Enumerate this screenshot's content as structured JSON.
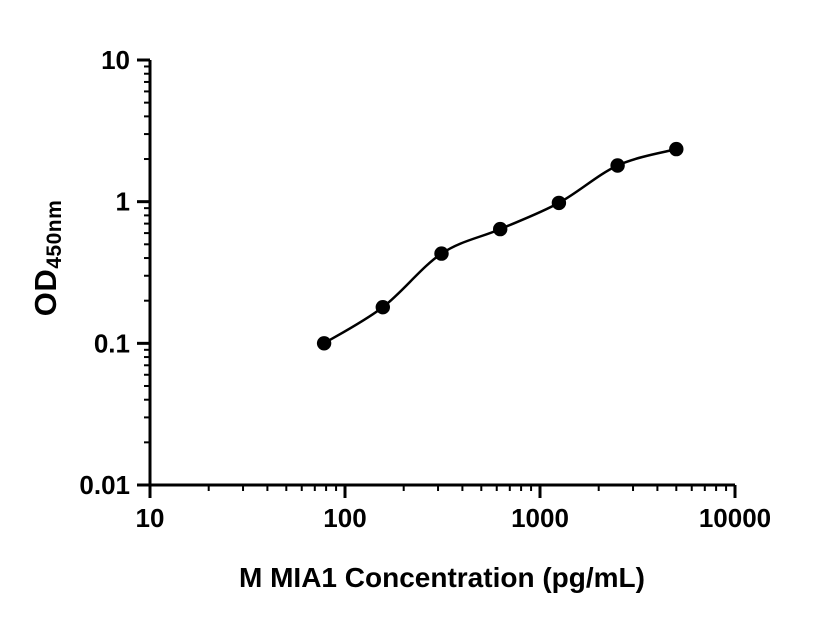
{
  "chart_data": {
    "type": "scatter",
    "title": "",
    "xlabel": "M MIA1 Concentration (pg/mL)",
    "ylabel": "OD",
    "ylabel_subscript": "450nm",
    "x_scale": "log10",
    "y_scale": "log10",
    "xlim": [
      10,
      10000
    ],
    "ylim": [
      0.01,
      10
    ],
    "x_ticks": [
      10,
      100,
      1000,
      10000
    ],
    "x_tick_labels": [
      "10",
      "100",
      "1000",
      "10000"
    ],
    "y_ticks": [
      10,
      1,
      0.1,
      0.01
    ],
    "y_tick_labels": [
      "10",
      "1",
      "0.1",
      "0.01"
    ],
    "grid": false,
    "legend": "none",
    "points": [
      {
        "x": 78.125,
        "y": 0.1
      },
      {
        "x": 156.25,
        "y": 0.18
      },
      {
        "x": 312.5,
        "y": 0.43
      },
      {
        "x": 625,
        "y": 0.64
      },
      {
        "x": 1250,
        "y": 0.98
      },
      {
        "x": 2500,
        "y": 1.8
      },
      {
        "x": 5000,
        "y": 2.35
      }
    ],
    "marker_color": "#000000",
    "line_color": "#000000",
    "axis_color": "#000000"
  }
}
